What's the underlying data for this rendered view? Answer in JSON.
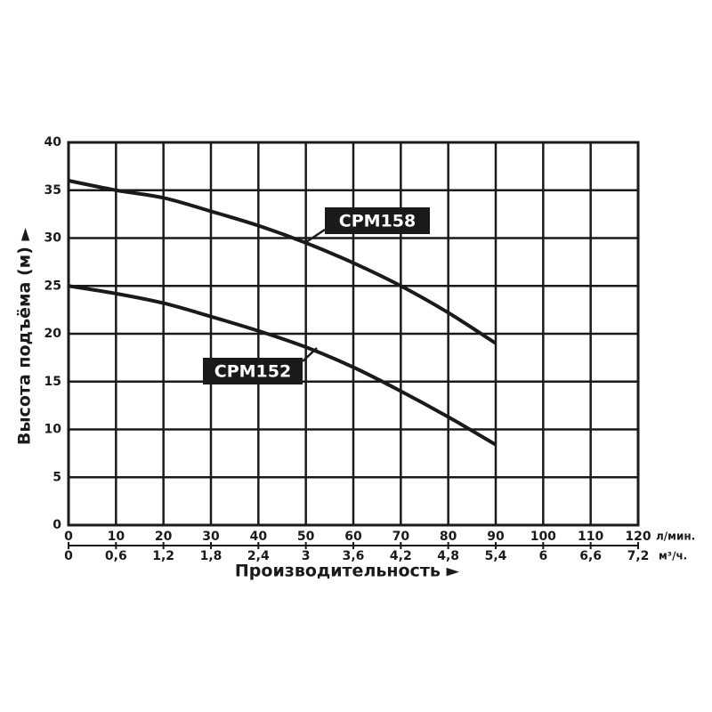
{
  "chart_data": {
    "type": "line",
    "x": [
      0,
      10,
      20,
      30,
      40,
      50,
      60,
      70,
      80,
      90
    ],
    "series": [
      {
        "name": "CPM158",
        "color": "#1a1a1a",
        "values": [
          36,
          35,
          34.2,
          32.8,
          31.3,
          29.5,
          27.4,
          25,
          22.2,
          19
        ]
      },
      {
        "name": "CPM152",
        "color": "#1a1a1a",
        "values": [
          25,
          24.2,
          23.2,
          21.8,
          20.3,
          18.6,
          16.5,
          14,
          11.3,
          8.4
        ]
      }
    ],
    "xlim": [
      0,
      120
    ],
    "xticks": [
      0,
      10,
      20,
      30,
      40,
      50,
      60,
      70,
      80,
      90,
      100,
      110,
      120
    ],
    "x_unit": "л/мин.",
    "x2lim": [
      0,
      7.2
    ],
    "x2ticks": [
      0,
      {
        "value": 0.6,
        "label": "0,6"
      },
      {
        "value": 1.2,
        "label": "1,2"
      },
      {
        "value": 1.8,
        "label": "1,8"
      },
      {
        "value": 2.4,
        "label": "2,4"
      },
      3,
      {
        "value": 3.6,
        "label": "3,6"
      },
      {
        "value": 4.2,
        "label": "4,2"
      },
      {
        "value": 4.8,
        "label": "4,8"
      },
      {
        "value": 5.4,
        "label": "5,4"
      },
      6,
      {
        "value": 6.6,
        "label": "6,6"
      },
      {
        "value": 7.2,
        "label": "7,2"
      }
    ],
    "x2_unit": "м³/ч.",
    "xlabel": "Производительность ►",
    "ylabel": "Высота подъёма (м) ►",
    "ylim": [
      0,
      40
    ],
    "yticks": [
      0,
      5,
      10,
      15,
      20,
      25,
      30,
      35,
      40
    ],
    "grid": true
  }
}
